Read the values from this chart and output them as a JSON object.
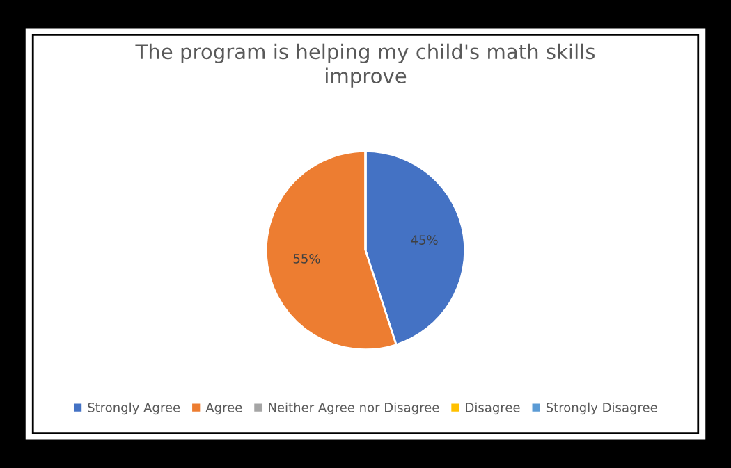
{
  "chart_data": {
    "type": "pie",
    "title": "The program is helping my child's math skills\nimprove",
    "categories": [
      "Strongly Agree",
      "Agree",
      "Neither Agree nor Disagree",
      "Disagree",
      "Strongly Disagree"
    ],
    "values": [
      45,
      55,
      0,
      0,
      0
    ],
    "colors": [
      "#4472c4",
      "#ed7d31",
      "#a5a5a5",
      "#ffc000",
      "#5b9bd5"
    ],
    "value_labels": [
      "45%",
      "55%",
      null,
      null,
      null
    ],
    "legend": "bottom"
  }
}
